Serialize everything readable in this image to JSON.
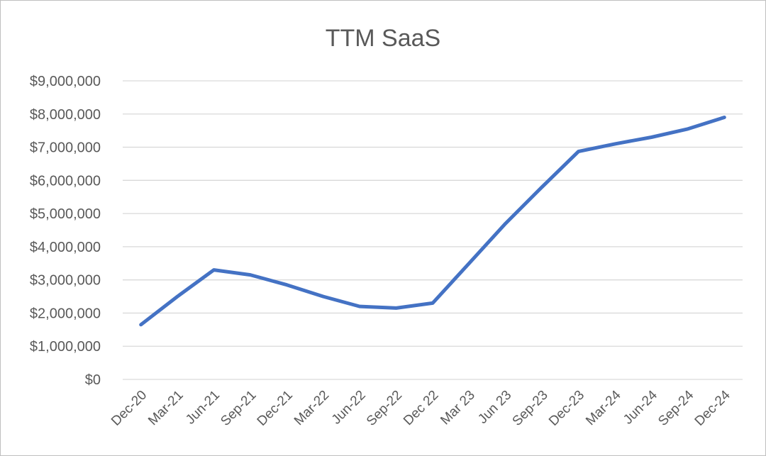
{
  "chart_data": {
    "type": "line",
    "title": "TTM SaaS",
    "xlabel": "",
    "ylabel": "",
    "categories": [
      "Dec-20",
      "Mar-21",
      "Jun-21",
      "Sep-21",
      "Dec-21",
      "Mar-22",
      "Jun-22",
      "Sep-22",
      "Dec 22",
      "Mar 23",
      "Jun 23",
      "Sep-23",
      "Dec-23",
      "Mar-24",
      "Jun-24",
      "Sep-24",
      "Dec-24"
    ],
    "series": [
      {
        "values": [
          1650000,
          2500000,
          3300000,
          3150000,
          2850000,
          2500000,
          2200000,
          2150000,
          2300000,
          3500000,
          4700000,
          5800000,
          6870000,
          7100000,
          7300000,
          7550000,
          7900000
        ]
      }
    ],
    "y_ticks": [
      "$0",
      "$1,000,000",
      "$2,000,000",
      "$3,000,000",
      "$4,000,000",
      "$5,000,000",
      "$6,000,000",
      "$7,000,000",
      "$8,000,000",
      "$9,000,000"
    ],
    "ylim": [
      0,
      9000000
    ],
    "grid": true,
    "legend": "none",
    "colors": {
      "line": "#4472c4",
      "grid": "#d9d9d9",
      "text": "#595959"
    }
  }
}
